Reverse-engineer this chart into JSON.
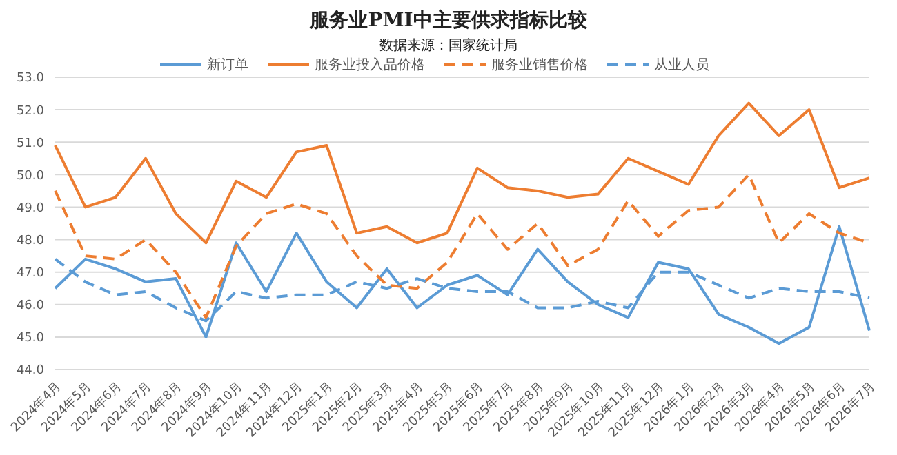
{
  "chart_data": {
    "type": "line",
    "title": "服务业PMI中主要供求指标比较",
    "subtitle": "数据来源：国家统计局",
    "categories": [
      "2024年4月",
      "2024年5月",
      "2024年6月",
      "2024年7月",
      "2024年8月",
      "2024年9月",
      "2024年10月",
      "2024年11月",
      "2024年12月",
      "2025年1月",
      "2025年2月",
      "2025年3月",
      "2025年4月",
      "2025年5月",
      "2025年6月",
      "2025年7月",
      "2025年8月",
      "2025年9月",
      "2025年10月",
      "2025年11月",
      "2025年12月",
      "2026年1月",
      "2026年2月",
      "2026年3月",
      "2026年4月",
      "2026年5月",
      "2026年6月",
      "2026年7月"
    ],
    "series": [
      {
        "name": "新订单",
        "color": "#5b9bd5",
        "line_style": "solid",
        "values": [
          46.5,
          47.4,
          47.1,
          46.7,
          46.8,
          45.0,
          47.9,
          46.4,
          48.2,
          46.7,
          45.9,
          47.1,
          45.9,
          46.6,
          46.9,
          46.3,
          47.7,
          46.7,
          46.0,
          45.6,
          47.3,
          47.1,
          45.7,
          45.3,
          44.8,
          45.3,
          48.4,
          45.2
        ]
      },
      {
        "name": "服务业投入品价格",
        "color": "#ed7d31",
        "line_style": "solid",
        "values": [
          50.9,
          49.0,
          49.3,
          50.5,
          48.8,
          47.9,
          49.8,
          49.3,
          50.7,
          50.9,
          48.2,
          48.4,
          47.9,
          48.2,
          50.2,
          49.6,
          49.5,
          49.3,
          49.4,
          50.5,
          50.1,
          49.7,
          51.2,
          52.2,
          51.2,
          52.0,
          49.6,
          49.9
        ]
      },
      {
        "name": "服务业销售价格",
        "color": "#ed7d31",
        "line_style": "dashed",
        "values": [
          49.5,
          47.5,
          47.4,
          48.0,
          47.0,
          45.6,
          47.8,
          48.8,
          49.1,
          48.8,
          47.5,
          46.6,
          46.5,
          47.3,
          48.8,
          47.7,
          48.5,
          47.2,
          47.7,
          49.2,
          48.1,
          48.9,
          49.0,
          50.0,
          47.9,
          48.8,
          48.2,
          47.9
        ]
      },
      {
        "name": "从业人员",
        "color": "#5b9bd5",
        "line_style": "dashed",
        "values": [
          47.4,
          46.7,
          46.3,
          46.4,
          45.9,
          45.5,
          46.4,
          46.2,
          46.3,
          46.3,
          46.7,
          46.5,
          46.8,
          46.5,
          46.4,
          46.4,
          45.9,
          45.9,
          46.1,
          45.9,
          47.0,
          47.0,
          46.6,
          46.2,
          46.5,
          46.4,
          46.4,
          46.2
        ]
      }
    ],
    "ylim": [
      44,
      53
    ],
    "yticks": [
      {
        "value": 44,
        "label": "44.0"
      },
      {
        "value": 45,
        "label": "45.0"
      },
      {
        "value": 46,
        "label": "46.0"
      },
      {
        "value": 47,
        "label": "47.0"
      },
      {
        "value": 48,
        "label": "48.0"
      },
      {
        "value": 49,
        "label": "49.0"
      },
      {
        "value": 50,
        "label": "50.0"
      },
      {
        "value": 51,
        "label": "51.0"
      },
      {
        "value": 52,
        "label": "52.0"
      },
      {
        "value": 53,
        "label": "53.0"
      }
    ],
    "grid": "y",
    "legend": "top",
    "marker": "none"
  }
}
